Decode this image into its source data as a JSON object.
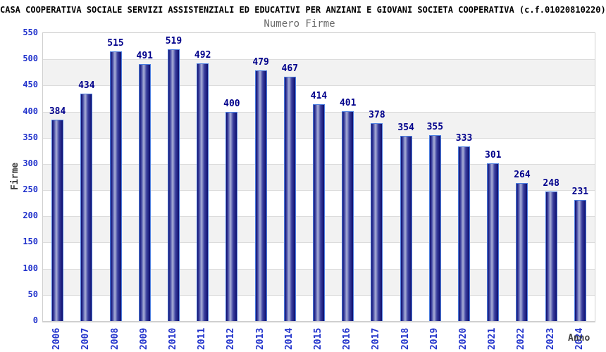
{
  "header": {
    "title": "CASA COOPERATIVA SOCIALE SERVIZI ASSISTENZIALI ED EDUCATIVI PER ANZIANI E GIOVANI SOCIETA COOPERATIVA (c.f.01020810220)",
    "subtitle": "Numero Firme"
  },
  "axes": {
    "ylabel": "Firme",
    "xlabel": "Anno"
  },
  "chart_data": {
    "type": "bar",
    "title": "Numero Firme",
    "xlabel": "Anno",
    "ylabel": "Firme",
    "categories": [
      "2006",
      "2007",
      "2008",
      "2009",
      "2010",
      "2011",
      "2012",
      "2013",
      "2014",
      "2015",
      "2016",
      "2017",
      "2018",
      "2019",
      "2020",
      "2021",
      "2022",
      "2023",
      "2024"
    ],
    "values": [
      384,
      434,
      515,
      491,
      519,
      492,
      400,
      479,
      467,
      414,
      401,
      378,
      354,
      355,
      333,
      301,
      264,
      248,
      231
    ],
    "ylim": [
      0,
      550
    ],
    "ytick_step": 50,
    "grid": true,
    "legend": false,
    "background_bands": "alternating white / light gray every 50 units"
  },
  "colors": {
    "bar_edge_dark": "#0e0e6e",
    "bar_mid": "#3a3f9e",
    "bar_center_light": "#aab0d8",
    "bar_outline": "#4d7fe0",
    "value_label": "#00008b",
    "tick_label": "#2233cc",
    "band_gray": "#f2f2f2",
    "gridline": "#dcdcdc",
    "plot_border": "#cfcfcf",
    "subtitle_text": "#6b6b6b",
    "axis_title_text": "#3f3f3f"
  }
}
